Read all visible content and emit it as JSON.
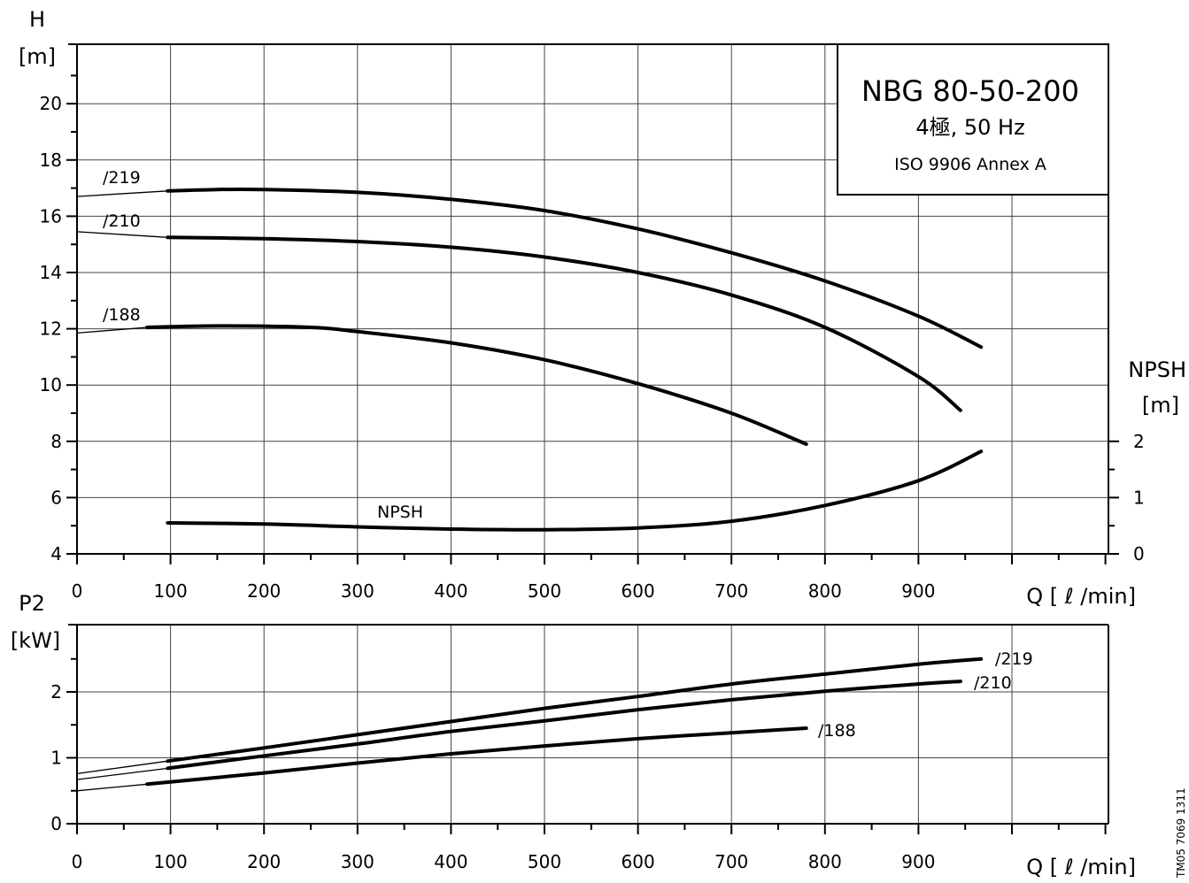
{
  "chart_data": [
    {
      "type": "line",
      "panel": "head",
      "title": "NBG 80-50-200",
      "subtitle": "4極, 50 Hz",
      "note": "ISO 9906 Annex A",
      "ylabel_top": "H",
      "yunit": "[m]",
      "y2label_top": "NPSH",
      "y2unit": "[m]",
      "xlabel": "Q [ ℓ /min]",
      "xlim": [
        0,
        1100
      ],
      "ylim": [
        4,
        22
      ],
      "y2lim": [
        0,
        2
      ],
      "xticks": [
        "0",
        "100",
        "200",
        "300",
        "400",
        "500",
        "600",
        "700",
        "800",
        "900"
      ],
      "yticks": [
        "4",
        "6",
        "8",
        "10",
        "12",
        "14",
        "16",
        "18",
        "20"
      ],
      "y2ticks": [
        "0",
        "1",
        "2"
      ],
      "grid": true,
      "series": [
        {
          "name": "/219",
          "x": [
            97,
            150,
            200,
            300,
            400,
            500,
            600,
            700,
            800,
            900,
            967
          ],
          "y": [
            16.9,
            16.95,
            16.95,
            16.85,
            16.6,
            16.2,
            15.55,
            14.7,
            13.7,
            12.45,
            11.35
          ],
          "x_ext": [
            0,
            97
          ],
          "y_ext": [
            16.7,
            16.9
          ]
        },
        {
          "name": "/210",
          "x": [
            97,
            200,
            300,
            400,
            500,
            600,
            700,
            800,
            900,
            945
          ],
          "y": [
            15.25,
            15.2,
            15.1,
            14.9,
            14.55,
            14.0,
            13.2,
            12.05,
            10.3,
            9.1
          ],
          "x_ext": [
            0,
            97
          ],
          "y_ext": [
            15.45,
            15.25
          ]
        },
        {
          "name": "/188",
          "x": [
            75,
            150,
            250,
            300,
            400,
            500,
            600,
            700,
            780
          ],
          "y": [
            12.05,
            12.1,
            12.05,
            11.9,
            11.5,
            10.9,
            10.05,
            9.0,
            7.9
          ],
          "x_ext": [
            0,
            75
          ],
          "y_ext": [
            11.85,
            12.05
          ]
        }
      ],
      "npsh": {
        "name": "NPSH",
        "x": [
          97,
          200,
          300,
          400,
          500,
          600,
          700,
          800,
          900,
          967
        ],
        "y": [
          0.55,
          0.53,
          0.48,
          0.44,
          0.43,
          0.46,
          0.58,
          0.86,
          1.3,
          1.82
        ]
      }
    },
    {
      "type": "line",
      "panel": "power",
      "ylabel_top": "P2",
      "yunit": "[kW]",
      "xlabel": "Q [ ℓ /min]",
      "xlim": [
        0,
        1100
      ],
      "ylim": [
        0,
        2.9
      ],
      "xticks": [
        "0",
        "100",
        "200",
        "300",
        "400",
        "500",
        "600",
        "700",
        "800",
        "900"
      ],
      "yticks": [
        "0",
        "1",
        "2"
      ],
      "grid": true,
      "series": [
        {
          "name": "/219",
          "x": [
            97,
            200,
            300,
            400,
            500,
            600,
            700,
            800,
            900,
            967
          ],
          "y": [
            0.95,
            1.15,
            1.35,
            1.55,
            1.75,
            1.93,
            2.12,
            2.27,
            2.42,
            2.5
          ],
          "x_ext": [
            0,
            97
          ],
          "y_ext": [
            0.76,
            0.95
          ]
        },
        {
          "name": "/210",
          "x": [
            97,
            200,
            300,
            400,
            500,
            600,
            700,
            800,
            900,
            945
          ],
          "y": [
            0.84,
            1.03,
            1.21,
            1.4,
            1.56,
            1.73,
            1.88,
            2.01,
            2.12,
            2.16
          ],
          "x_ext": [
            0,
            97
          ],
          "y_ext": [
            0.67,
            0.84
          ]
        },
        {
          "name": "/188",
          "x": [
            75,
            200,
            300,
            400,
            500,
            600,
            700,
            780
          ],
          "y": [
            0.6,
            0.77,
            0.92,
            1.06,
            1.18,
            1.29,
            1.38,
            1.45
          ],
          "x_ext": [
            0,
            75
          ],
          "y_ext": [
            0.5,
            0.6
          ]
        }
      ]
    }
  ],
  "side_code": "TM05 7069 1311"
}
